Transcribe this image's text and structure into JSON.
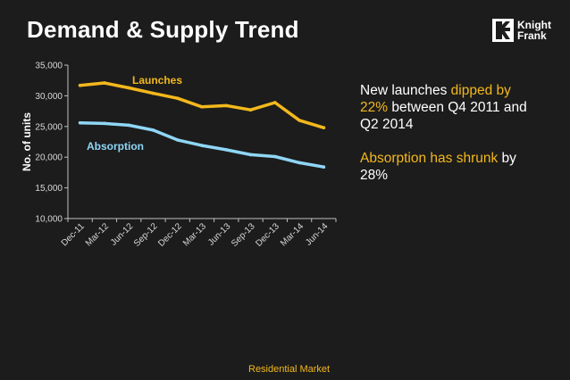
{
  "title": "Demand & Supply Trend",
  "logo": {
    "line1": "Knight",
    "line2": "Frank"
  },
  "footer": "Residential Market",
  "annotation": {
    "p1_pre": "New launches ",
    "p1_hl": "dipped by 22%",
    "p1_post": " between Q4 2011 and Q2 2014",
    "p2_hl": "Absorption has shrunk",
    "p2_post": " by 28%"
  },
  "colors": {
    "launches": "#f3b81c",
    "absorption": "#8fd6f5",
    "axis": "#bfbfbf",
    "background": "#1c1c1c"
  },
  "chart_data": {
    "type": "line",
    "title": "Demand & Supply Trend",
    "xlabel": "",
    "ylabel": "No. of units",
    "categories": [
      "Dec-11",
      "Mar-12",
      "Jun-12",
      "Sep-12",
      "Dec-12",
      "Mar-13",
      "Jun-13",
      "Sep-13",
      "Dec-13",
      "Mar-14",
      "Jun-14"
    ],
    "yticks": [
      "10,000",
      "15,000",
      "20,000",
      "25,000",
      "30,000",
      "35,000"
    ],
    "ylim": [
      10000,
      35000
    ],
    "grid": false,
    "series": [
      {
        "name": "Launches",
        "color": "#f3b81c",
        "values": [
          31700,
          32100,
          31300,
          30400,
          29600,
          28200,
          28400,
          27700,
          28900,
          26000,
          24800
        ]
      },
      {
        "name": "Absorption",
        "color": "#8fd6f5",
        "values": [
          25600,
          25500,
          25200,
          24400,
          22800,
          21900,
          21200,
          20400,
          20100,
          19100,
          18400
        ]
      }
    ]
  }
}
